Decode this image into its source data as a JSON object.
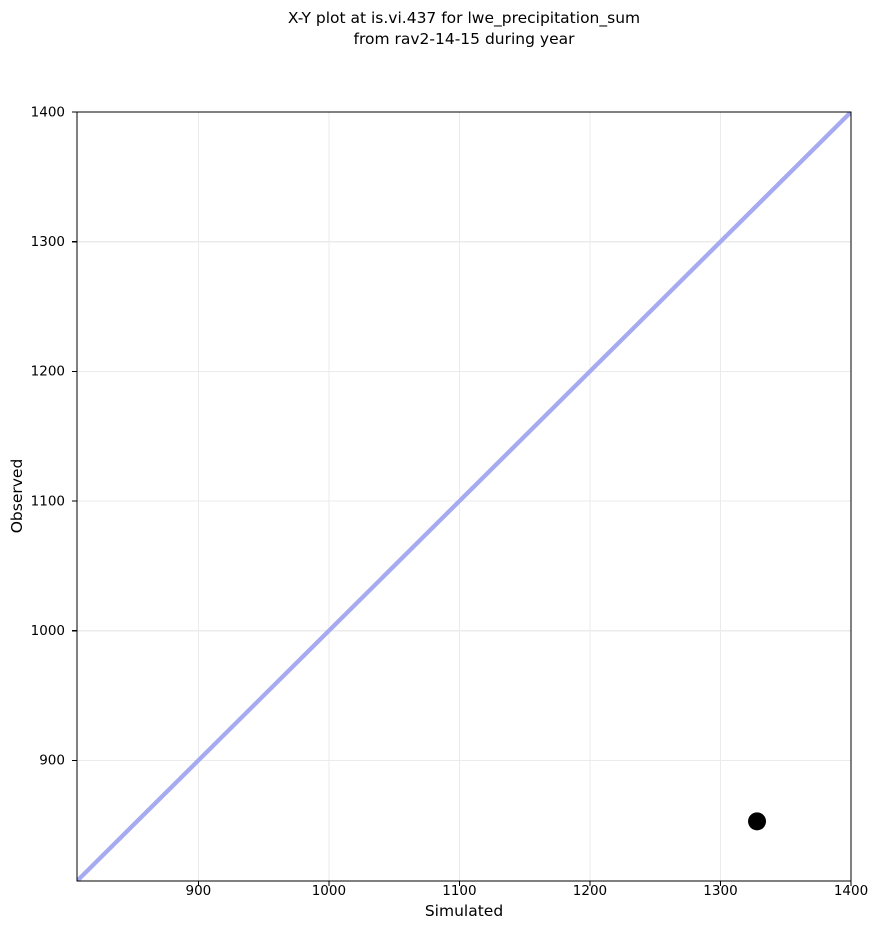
{
  "chart_data": {
    "type": "scatter",
    "title_line1": "X-Y plot at is.vi.437 for lwe_precipitation_sum",
    "title_line2": "from rav2-14-15 during year",
    "xlabel": "Simulated",
    "ylabel": "Observed",
    "xlim": [
      807,
      1400
    ],
    "ylim": [
      807,
      1400
    ],
    "xticks": [
      900,
      1000,
      1100,
      1200,
      1300,
      1400
    ],
    "yticks": [
      900,
      1000,
      1100,
      1200,
      1300,
      1400
    ],
    "grid": true,
    "legend": false,
    "series": [
      {
        "name": "identity-line",
        "type": "line",
        "x": [
          807,
          1400
        ],
        "y": [
          807,
          1400
        ],
        "color": "#a6aaf0"
      },
      {
        "name": "observations",
        "type": "scatter",
        "points": [
          {
            "x": 1328,
            "y": 853
          }
        ],
        "color": "#000000"
      }
    ],
    "style": {
      "background": "#ffffff",
      "grid_color": "#ebebeb",
      "spine_color": "#000000",
      "text_color": "#000000",
      "identity_line_width": 4.3,
      "point_radius": 9
    }
  }
}
